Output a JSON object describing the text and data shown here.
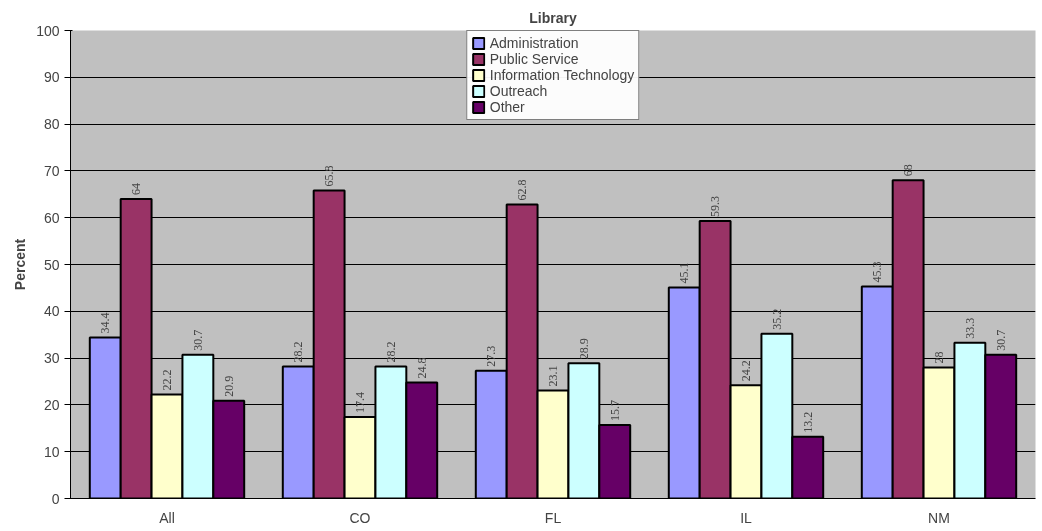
{
  "chart_data": {
    "type": "bar",
    "title": "Library",
    "ylabel": "Percent",
    "categories": [
      "All",
      "CO",
      "FL",
      "IL",
      "NM"
    ],
    "series": [
      {
        "name": "Administration",
        "color": "#9999ff",
        "values": [
          34.4,
          28.2,
          27.3,
          45.1,
          45.3
        ]
      },
      {
        "name": "Public Service",
        "color": "#993366",
        "values": [
          64,
          65.8,
          62.8,
          59.3,
          68
        ]
      },
      {
        "name": "Information Technology",
        "color": "#ffffcc",
        "values": [
          22.2,
          17.4,
          23.1,
          24.2,
          28
        ]
      },
      {
        "name": "Outreach",
        "color": "#ccffff",
        "values": [
          30.7,
          28.2,
          28.9,
          35.2,
          33.3
        ]
      },
      {
        "name": "Other",
        "color": "#660066",
        "values": [
          20.9,
          24.8,
          15.7,
          13.2,
          30.7
        ]
      }
    ],
    "ylim": [
      0,
      100
    ],
    "yticks": [
      0,
      10,
      20,
      30,
      40,
      50,
      60,
      70,
      80,
      90,
      100
    ],
    "grid": "y",
    "legend": "top",
    "data_labels": true
  }
}
